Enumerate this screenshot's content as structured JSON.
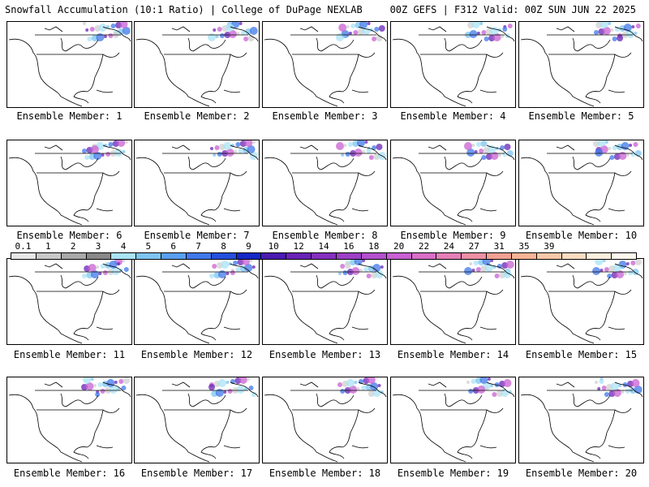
{
  "header": {
    "title_left": "Snowfall Accumulation (10:1 Ratio) | College of DuPage NEXLAB",
    "title_right": "00Z GEFS | F312 Valid: 00Z SUN JUN 22 2025"
  },
  "members": [
    {
      "label": "Ensemble Member: 1"
    },
    {
      "label": "Ensemble Member: 2"
    },
    {
      "label": "Ensemble Member: 3"
    },
    {
      "label": "Ensemble Member: 4"
    },
    {
      "label": "Ensemble Member: 5"
    },
    {
      "label": "Ensemble Member: 6"
    },
    {
      "label": "Ensemble Member: 7"
    },
    {
      "label": "Ensemble Member: 8"
    },
    {
      "label": "Ensemble Member: 9"
    },
    {
      "label": "Ensemble Member: 10"
    },
    {
      "label": "Ensemble Member: 11"
    },
    {
      "label": "Ensemble Member: 12"
    },
    {
      "label": "Ensemble Member: 13"
    },
    {
      "label": "Ensemble Member: 14"
    },
    {
      "label": "Ensemble Member: 15"
    },
    {
      "label": "Ensemble Member: 16"
    },
    {
      "label": "Ensemble Member: 17"
    },
    {
      "label": "Ensemble Member: 18"
    },
    {
      "label": "Ensemble Member: 19"
    },
    {
      "label": "Ensemble Member: 20"
    }
  ],
  "colorbar": {
    "ticks": [
      "0.1",
      "1",
      "2",
      "3",
      "4",
      "5",
      "6",
      "7",
      "8",
      "9",
      "10",
      "12",
      "14",
      "16",
      "18",
      "20",
      "22",
      "24",
      "27",
      "31",
      "35",
      "39"
    ],
    "colors": [
      "#e6e6e6",
      "#c8c8c8",
      "#a8a8a8",
      "#888888",
      "#a9e3f5",
      "#7ec4f0",
      "#5a9ff0",
      "#3f78ea",
      "#2450dc",
      "#1428c8",
      "#4a1bb0",
      "#6a23b6",
      "#8430be",
      "#9d3fc6",
      "#b34fce",
      "#c860d2",
      "#d86fc8",
      "#e47fb8",
      "#ec8fa4",
      "#f2a092",
      "#f6b494",
      "#f9c8a8",
      "#fbdcc2",
      "#fdeedd",
      "#fff8ee"
    ]
  }
}
